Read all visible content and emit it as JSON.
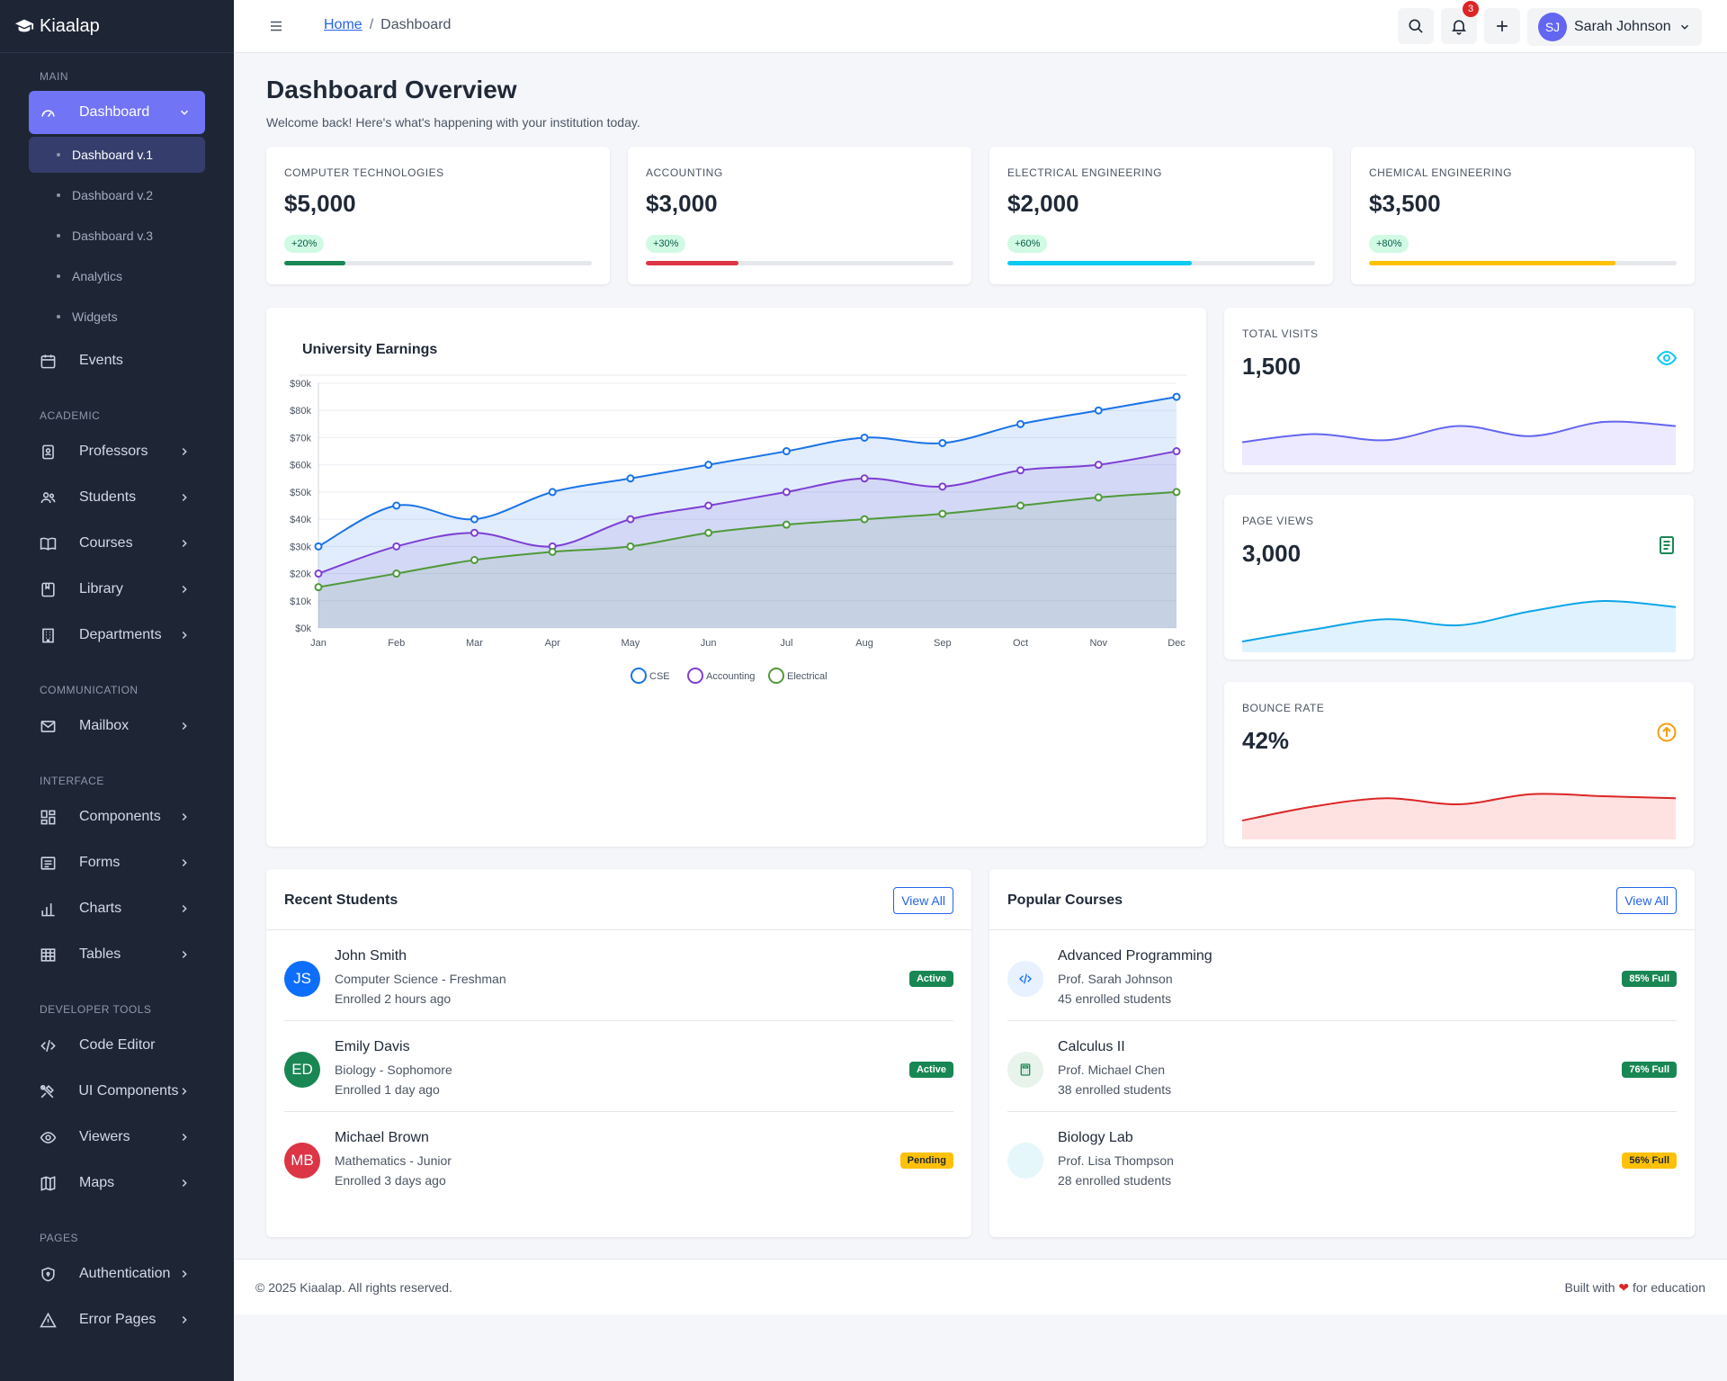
{
  "brand": {
    "name": "Kiaalap"
  },
  "sidebar": {
    "sections": {
      "main": "MAIN",
      "academic": "ACADEMIC",
      "communication": "COMMUNICATION",
      "interface": "INTERFACE",
      "devtools": "DEVELOPER TOOLS",
      "pages": "PAGES"
    },
    "dashboard": "Dashboard",
    "dashboard_sub": [
      "Dashboard v.1",
      "Dashboard v.2",
      "Dashboard v.3",
      "Analytics",
      "Widgets"
    ],
    "events": "Events",
    "academic": [
      "Professors",
      "Students",
      "Courses",
      "Library",
      "Departments"
    ],
    "communication": [
      "Mailbox"
    ],
    "interface": [
      "Components",
      "Forms",
      "Charts",
      "Tables"
    ],
    "devtools": [
      "Code Editor",
      "UI Components",
      "Viewers",
      "Maps"
    ],
    "pages": [
      "Authentication",
      "Error Pages"
    ]
  },
  "topbar": {
    "breadcrumb_home": "Home",
    "breadcrumb_sep": "/",
    "breadcrumb_current": "Dashboard",
    "notification_count": "3",
    "user_initials": "SJ",
    "user_name": "Sarah Johnson"
  },
  "page": {
    "title": "Dashboard Overview",
    "subtitle": "Welcome back! Here's what's happening with your institution today."
  },
  "stats": [
    {
      "label": "COMPUTER TECHNOLOGIES",
      "value": "$5,000",
      "change": "+20%",
      "progress": 20,
      "color": "#198754"
    },
    {
      "label": "ACCOUNTING",
      "value": "$3,000",
      "change": "+30%",
      "progress": 30,
      "color": "#dc3545"
    },
    {
      "label": "ELECTRICAL ENGINEERING",
      "value": "$2,000",
      "change": "+60%",
      "progress": 60,
      "color": "#0dcaf0"
    },
    {
      "label": "CHEMICAL ENGINEERING",
      "value": "$3,500",
      "change": "+80%",
      "progress": 80,
      "color": "#ffc107"
    }
  ],
  "chart_data": {
    "type": "area",
    "title": "University Earnings",
    "categories": [
      "Jan",
      "Feb",
      "Mar",
      "Apr",
      "May",
      "Jun",
      "Jul",
      "Aug",
      "Sep",
      "Oct",
      "Nov",
      "Dec"
    ],
    "ylim": [
      0,
      90000
    ],
    "yticks": [
      "$0k",
      "$10k",
      "$20k",
      "$30k",
      "$40k",
      "$50k",
      "$60k",
      "$70k",
      "$80k",
      "$90k"
    ],
    "legend_position": "bottom",
    "series": [
      {
        "name": "CSE",
        "color": "#1a73e8",
        "values": [
          30000,
          45000,
          40000,
          50000,
          55000,
          60000,
          65000,
          70000,
          68000,
          75000,
          80000,
          85000
        ]
      },
      {
        "name": "Accounting",
        "color": "#7e3fd4",
        "values": [
          20000,
          30000,
          35000,
          30000,
          40000,
          45000,
          50000,
          55000,
          52000,
          58000,
          60000,
          65000
        ]
      },
      {
        "name": "Electrical",
        "color": "#4f9a3a",
        "values": [
          15000,
          20000,
          25000,
          28000,
          30000,
          35000,
          38000,
          40000,
          42000,
          45000,
          48000,
          50000
        ]
      }
    ]
  },
  "mini_stats": [
    {
      "label": "TOTAL VISITS",
      "value": "1,500",
      "icon": "eye-icon",
      "color": "#0dcaf0",
      "line": "#6366f1",
      "area": "#ede9fe",
      "trend": [
        0.3,
        0.5,
        0.35,
        0.7,
        0.45,
        0.8,
        0.7
      ]
    },
    {
      "label": "PAGE VIEWS",
      "value": "3,000",
      "icon": "document-icon",
      "color": "#198754",
      "line": "#0ea5e9",
      "area": "#e0f2fe",
      "trend": [
        0.0,
        0.3,
        0.55,
        0.4,
        0.75,
        1.0,
        0.85
      ]
    },
    {
      "label": "BOUNCE RATE",
      "value": "42%",
      "icon": "arrow-up-circle-icon",
      "color": "#f59e0b",
      "line": "#dc2626",
      "area": "#fee2e2",
      "trend": [
        0.2,
        0.55,
        0.75,
        0.6,
        0.85,
        0.8,
        0.75
      ]
    }
  ],
  "recent_students": {
    "title": "Recent Students",
    "view_all": "View All",
    "items": [
      {
        "initials": "JS",
        "color": "#0d6efd",
        "name": "John Smith",
        "program": "Computer Science - Freshman",
        "enrolled": "Enrolled 2 hours ago",
        "status": "Active",
        "status_style": "green"
      },
      {
        "initials": "ED",
        "color": "#198754",
        "name": "Emily Davis",
        "program": "Biology - Sophomore",
        "enrolled": "Enrolled 1 day ago",
        "status": "Active",
        "status_style": "green"
      },
      {
        "initials": "MB",
        "color": "#dc3545",
        "name": "Michael Brown",
        "program": "Mathematics - Junior",
        "enrolled": "Enrolled 3 days ago",
        "status": "Pending",
        "status_style": "yellow"
      }
    ]
  },
  "popular_courses": {
    "title": "Popular Courses",
    "view_all": "View All",
    "items": [
      {
        "icon": "code-icon",
        "bg": "#e7f1ff",
        "fg": "#0d6efd",
        "name": "Advanced Programming",
        "professor": "Prof. Sarah Johnson",
        "enrolled": "45 enrolled students",
        "fill": "85% Full",
        "fill_style": "green"
      },
      {
        "icon": "calculator-icon",
        "bg": "#e8f3ec",
        "fg": "#198754",
        "name": "Calculus II",
        "professor": "Prof. Michael Chen",
        "enrolled": "38 enrolled students",
        "fill": "76% Full",
        "fill_style": "green"
      },
      {
        "icon": "flask-icon",
        "bg": "#e6f7fb",
        "fg": "#0dcaf0",
        "name": "Biology Lab",
        "professor": "Prof. Lisa Thompson",
        "enrolled": "28 enrolled students",
        "fill": "56% Full",
        "fill_style": "yellow"
      }
    ]
  },
  "footer": {
    "copyright": "© 2025 Kiaalap. All rights reserved.",
    "built_pre": "Built with",
    "heart": "❤",
    "built_post": "for education"
  }
}
